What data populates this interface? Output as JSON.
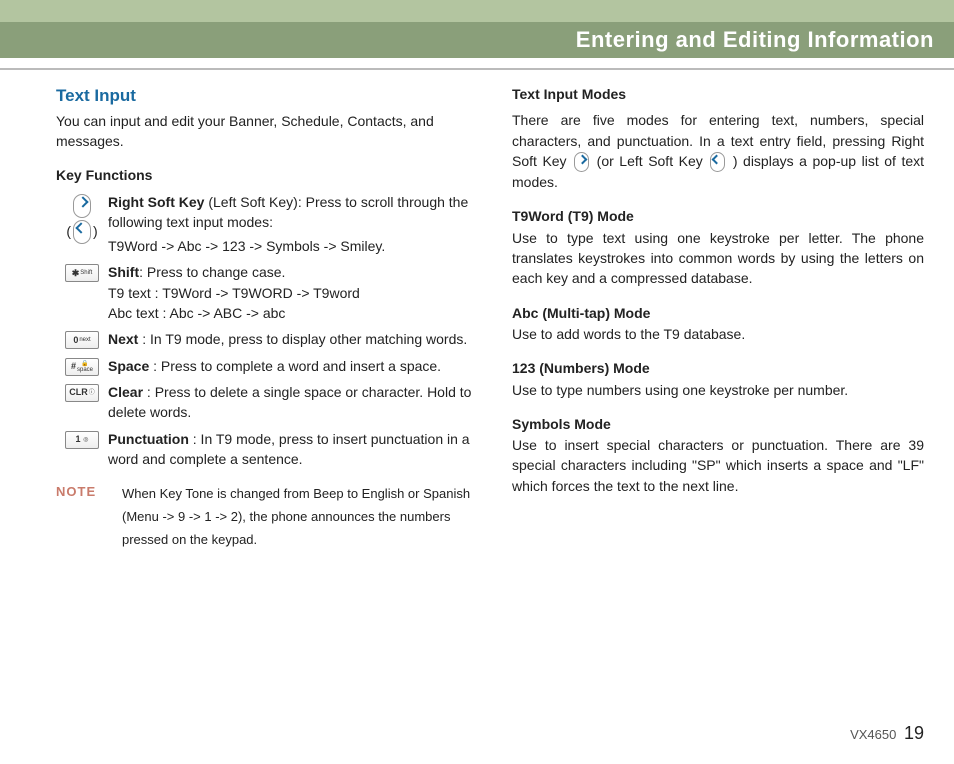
{
  "header": {
    "title": "Entering and Editing Information"
  },
  "left": {
    "section_title": "Text Input",
    "lead": "You can input and edit your Banner, Schedule, Contacts, and messages.",
    "key_functions_title": "Key Functions",
    "items": {
      "softkey": {
        "label": "Right Soft Key",
        "desc1": " (Left Soft Key): Press to scroll through the following text input modes:",
        "desc2": "T9Word -> Abc -> 123 -> Symbols -> Smiley."
      },
      "shift": {
        "key_main": "✱",
        "key_sub": "Shift",
        "label": "Shift",
        "desc1": ": Press to change case.",
        "desc2": "T9 text : T9Word -> T9WORD -> T9word",
        "desc3": "Abc text : Abc -> ABC -> abc"
      },
      "next": {
        "key_main": "0",
        "key_sub": "next",
        "label": "Next",
        "desc": " : In T9 mode, press to display other matching words."
      },
      "space": {
        "key_main": "#",
        "key_sub": "space",
        "label": "Space",
        "desc": " : Press to complete a word and insert a space."
      },
      "clear": {
        "key_main": "CLR",
        "key_sub": "ⓘ",
        "label": "Clear",
        "desc": " : Press to delete a single space or character. Hold to delete words."
      },
      "punct": {
        "key_main": "1",
        "key_sub": "",
        "label": "Punctuation",
        "desc": " : In T9 mode, press to insert punctuation in a word and complete a sentence."
      }
    },
    "note": {
      "label": "NOTE",
      "text": "When Key Tone is changed from Beep to English or Spanish (Menu -> 9 -> 1 -> 2), the phone announces the numbers pressed on the keypad."
    }
  },
  "right": {
    "modes_title": "Text Input Modes",
    "modes_intro_1": "There are five modes for entering text, numbers, special characters, and punctuation. In a text entry field, pressing Right Soft Key ",
    "modes_intro_2": "(or Left Soft Key ",
    "modes_intro_3": " ) displays a pop-up list of text modes.",
    "t9": {
      "title": "T9Word (T9) Mode",
      "body": "Use to type text using one keystroke per letter. The phone translates keystrokes into common words by using the letters on each key and a compressed database."
    },
    "abc": {
      "title": "Abc (Multi-tap) Mode",
      "body": "Use to add words to the T9 database."
    },
    "num": {
      "title": "123 (Numbers) Mode",
      "body": "Use to type numbers using one keystroke per number."
    },
    "sym": {
      "title": "Symbols Mode",
      "body": "Use to insert special characters or punctuation. There are 39 special characters including \"SP\" which inserts a space and \"LF\" which forces the text to the next line."
    }
  },
  "footer": {
    "model": "VX4650",
    "page": "19"
  },
  "colors": {
    "header_bg": "#8a9f7a",
    "top_bg": "#b3c5a0",
    "section_title": "#1a6aa0",
    "note": "#c97b6b"
  }
}
